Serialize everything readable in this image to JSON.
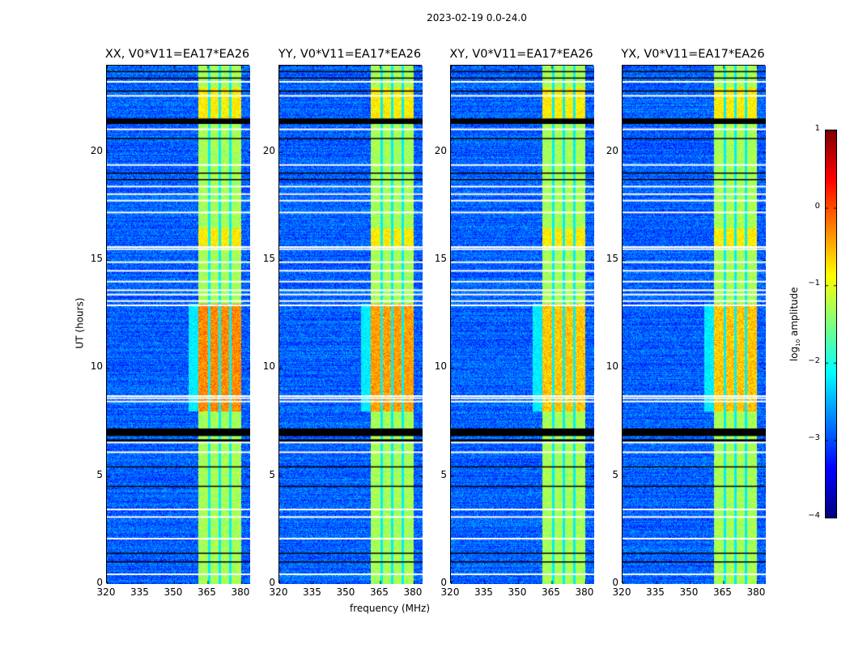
{
  "chart_data": {
    "type": "heatmap",
    "title": "2023-02-19 0.0-24.0",
    "xlabel": "frequency (MHz)",
    "ylabel": "UT (hours)",
    "xlim": [
      320,
      384
    ],
    "ylim": [
      0,
      24
    ],
    "xticks": [
      "320",
      "335",
      "350",
      "365",
      "380"
    ],
    "xtick_values": [
      320,
      335,
      350,
      365,
      380
    ],
    "yticks": [
      "0",
      "5",
      "10",
      "15",
      "20"
    ],
    "ytick_values": [
      0,
      5,
      10,
      15,
      20
    ],
    "colormap": "jet",
    "colorbar": {
      "label": "log10 amplitude",
      "label_main": "log",
      "label_sub": "10",
      "label_rest": " amplitude",
      "range": [
        -4,
        1
      ],
      "ticks": [
        "1",
        "0",
        "−1",
        "−2",
        "−3",
        "−4"
      ],
      "tick_values": [
        1,
        0,
        -1,
        -2,
        -3,
        -4
      ]
    },
    "panels": [
      {
        "title": "XX, V0*V11=EA17*EA26",
        "hot_level": -0.3
      },
      {
        "title": "YY, V0*V11=EA17*EA26",
        "hot_level": -0.4
      },
      {
        "title": "XY, V0*V11=EA17*EA26",
        "hot_level": -0.6
      },
      {
        "title": "YX, V0*V11=EA17*EA26",
        "hot_level": -0.6
      }
    ],
    "signal_band_mhz": [
      360.5,
      380
    ],
    "subband_edges_mhz": [
      365.5,
      370.2,
      375
    ],
    "background_level": -2.9,
    "band_level": -1.3,
    "active_period_ut": [
      8,
      13
    ],
    "flagged_white_ut": [
      0.45,
      2.1,
      3.1,
      3.45,
      6.1,
      6.55,
      8.45,
      8.6,
      8.7,
      12.9,
      13.1,
      13.4,
      13.6,
      14.0,
      14.5,
      14.9,
      15.5,
      15.6,
      17.2,
      17.75,
      18.05,
      18.4,
      19.4,
      21.05,
      22.6,
      23.25
    ],
    "flagged_black_ut": [
      [
        6.85,
        7.2
      ],
      [
        6.6,
        6.7
      ],
      [
        1.0,
        1.05
      ],
      [
        1.4,
        1.45
      ],
      [
        4.5,
        4.55
      ],
      [
        5.4,
        5.45
      ],
      [
        18.7,
        18.75
      ],
      [
        19.0,
        19.05
      ],
      [
        20.6,
        20.65
      ],
      [
        21.3,
        21.55
      ],
      [
        22.8,
        22.85
      ],
      [
        23.4,
        23.45
      ],
      [
        23.7,
        23.75
      ]
    ]
  }
}
